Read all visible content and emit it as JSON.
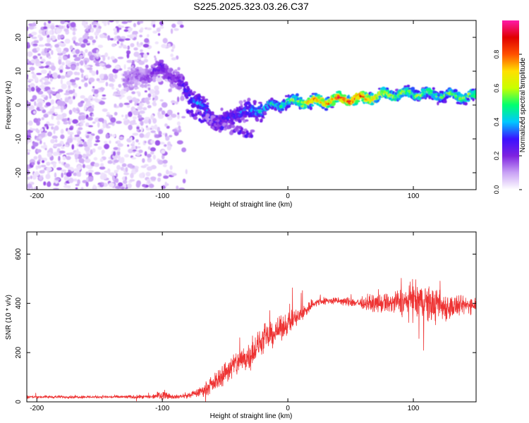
{
  "title": "S225.2025.323.03.26.C37",
  "chart_data": [
    {
      "type": "heatmap",
      "title": "S225.2025.323.03.26.C37",
      "xlabel": "Height of straight line (km)",
      "ylabel": "Frequency (Hz)",
      "xlim": [
        -208,
        150
      ],
      "ylim": [
        -25,
        25
      ],
      "xticks": [
        -200,
        -100,
        0,
        100
      ],
      "yticks": [
        -20,
        -10,
        0,
        10,
        20
      ],
      "colorbar": {
        "label": "Normalized spectral amplitude",
        "range": [
          0,
          1
        ],
        "ticks": [
          0.0,
          0.2,
          0.4,
          0.6,
          0.8
        ],
        "tick_labels": [
          "0.0",
          "0.2",
          "0.4",
          "0.6",
          "0.8"
        ],
        "colors": [
          "#ffffff",
          "#c9a2f5",
          "#7e22e0",
          "#3b10ff",
          "#00c8ff",
          "#00ff70",
          "#c8ff00",
          "#ffe000",
          "#ff5000",
          "#e00000",
          "#ff1aa8"
        ]
      },
      "ridge": {
        "x": [
          -125,
          -110,
          -100,
          -90,
          -80,
          -70,
          -60,
          -50,
          -40,
          -30,
          -20,
          -10,
          0,
          10,
          20,
          40,
          60,
          80,
          100,
          120,
          150
        ],
        "freq": [
          8,
          9,
          11,
          8,
          4,
          0,
          -4,
          -5,
          -2,
          -2,
          -1,
          0,
          1,
          1,
          1,
          1.5,
          2,
          3,
          3.5,
          3,
          2.5
        ],
        "amplitude": [
          0.15,
          0.18,
          0.25,
          0.2,
          0.3,
          0.35,
          0.3,
          0.28,
          0.3,
          0.35,
          0.4,
          0.45,
          0.5,
          0.6,
          0.7,
          0.85,
          0.85,
          0.6,
          0.55,
          0.5,
          0.55
        ]
      },
      "noise_region_x": [
        -208,
        -80
      ]
    },
    {
      "type": "line",
      "xlabel": "Height of straight line (km)",
      "ylabel": "SNR (10 * v/v)",
      "xlim": [
        -208,
        150
      ],
      "ylim": [
        0,
        690
      ],
      "xticks": [
        -200,
        -100,
        0,
        100
      ],
      "yticks": [
        0,
        200,
        400,
        600
      ],
      "series": [
        {
          "name": "SNR",
          "color": "#ee3333",
          "x": [
            -208,
            -150,
            -110,
            -100,
            -90,
            -80,
            -70,
            -60,
            -50,
            -40,
            -30,
            -20,
            -10,
            0,
            10,
            20,
            30,
            40,
            60,
            80,
            100,
            110,
            120,
            130,
            140,
            150
          ],
          "y": [
            20,
            20,
            20,
            30,
            20,
            25,
            40,
            70,
            120,
            160,
            190,
            250,
            280,
            320,
            350,
            400,
            410,
            410,
            400,
            400,
            410,
            400,
            390,
            385,
            390,
            400
          ],
          "spread": [
            8,
            8,
            10,
            25,
            10,
            15,
            25,
            45,
            65,
            75,
            80,
            75,
            65,
            60,
            50,
            30,
            20,
            20,
            30,
            60,
            90,
            110,
            90,
            70,
            50,
            45
          ]
        }
      ]
    }
  ]
}
